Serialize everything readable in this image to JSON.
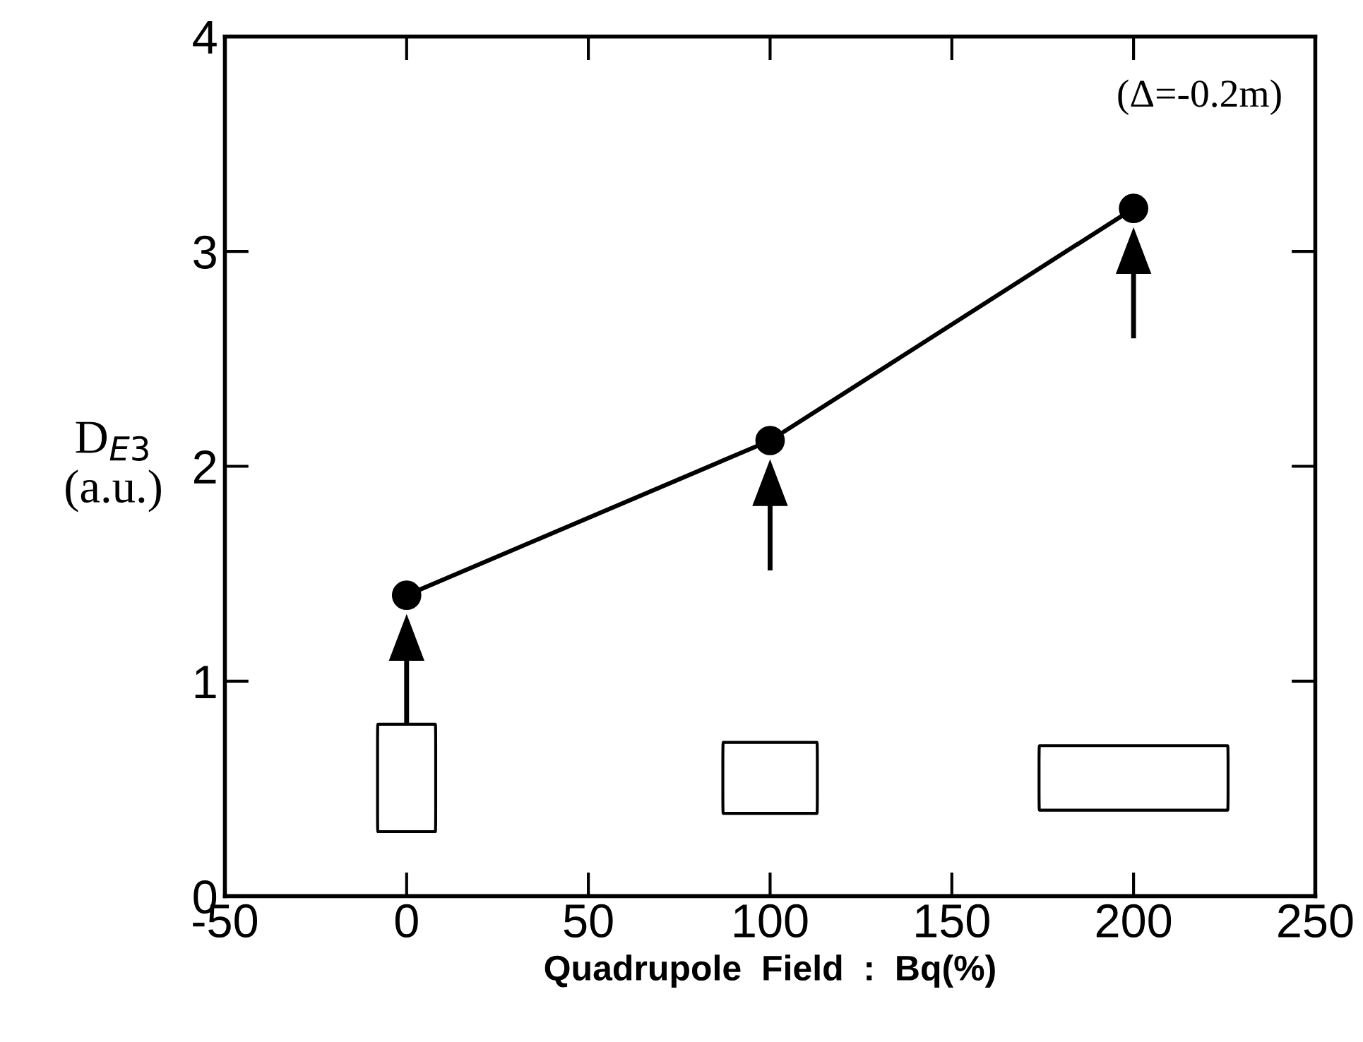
{
  "chart_data": {
    "type": "line",
    "xlabel": "Quadrupole  Field  :  Bq(%)",
    "ylabel": "D$_{E3}$\n(a.u.)",
    "x": [
      0,
      100,
      200
    ],
    "series": [
      {
        "color": "#000000",
        "values": [
          1.4,
          2.12,
          3.2
        ]
      }
    ],
    "marker": "circle",
    "line_style": "solid",
    "xlim": [
      -50,
      250
    ],
    "xticks": [
      -50,
      0,
      50,
      100,
      150,
      200,
      250
    ],
    "ylim": [
      0,
      4
    ],
    "yticks": [
      0,
      1,
      2,
      3,
      4
    ],
    "grid": false,
    "legend": false,
    "annotations": [
      "(Δ=-0.2m)"
    ]
  }
}
